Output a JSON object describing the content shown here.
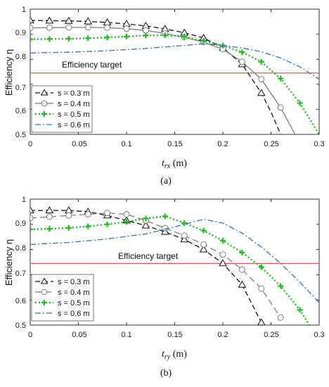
{
  "chart_data": [
    {
      "type": "line",
      "caption": "(a)",
      "xlabel_main": "t",
      "xlabel_sub": "rx",
      "xlabel_unit": " (m)",
      "ylabel": "Efficiency η",
      "xlim": [
        0,
        0.3
      ],
      "ylim": [
        0.5,
        1
      ],
      "xticks": [
        "0",
        "0.05",
        "0.1",
        "0.15",
        "0.2",
        "0.25",
        "0.3"
      ],
      "yticks": [
        "0.5",
        "0.6",
        "0.7",
        "0.8",
        "0.9",
        "1"
      ],
      "grid": false,
      "legend_position": "bottom-left",
      "annotation": {
        "text": "Efficiency target",
        "y": 0.745,
        "color": "#e8413c"
      },
      "series": [
        {
          "name": "s = 0.3 m",
          "color": "#111111",
          "dash": "7,4",
          "marker": "triangle",
          "x": [
            0,
            0.02,
            0.04,
            0.06,
            0.08,
            0.1,
            0.12,
            0.14,
            0.16,
            0.18,
            0.2,
            0.22,
            0.24,
            0.25,
            0.26
          ],
          "y": [
            0.955,
            0.954,
            0.953,
            0.951,
            0.947,
            0.941,
            0.933,
            0.921,
            0.906,
            0.885,
            0.845,
            0.78,
            0.665,
            0.59,
            0.5
          ],
          "markers": [
            0,
            0.02,
            0.04,
            0.06,
            0.08,
            0.1,
            0.12,
            0.14,
            0.16,
            0.18,
            0.2,
            0.22,
            0.24
          ]
        },
        {
          "name": "s = 0.4 m",
          "color": "#7f7f7f",
          "dash": "",
          "marker": "circle",
          "x": [
            0,
            0.02,
            0.04,
            0.06,
            0.08,
            0.1,
            0.12,
            0.14,
            0.16,
            0.18,
            0.2,
            0.22,
            0.24,
            0.26,
            0.275
          ],
          "y": [
            0.925,
            0.926,
            0.927,
            0.927,
            0.926,
            0.922,
            0.915,
            0.903,
            0.888,
            0.868,
            0.84,
            0.79,
            0.72,
            0.607,
            0.5
          ],
          "markers": [
            0,
            0.02,
            0.04,
            0.06,
            0.08,
            0.1,
            0.12,
            0.14,
            0.16,
            0.18,
            0.2,
            0.22,
            0.24,
            0.26
          ]
        },
        {
          "name": "s = 0.5 m",
          "color": "#22bb22",
          "dash": "2,3",
          "marker": "plus",
          "x": [
            0,
            0.02,
            0.04,
            0.06,
            0.08,
            0.1,
            0.12,
            0.14,
            0.16,
            0.18,
            0.2,
            0.22,
            0.24,
            0.26,
            0.28,
            0.3
          ],
          "y": [
            0.88,
            0.881,
            0.882,
            0.884,
            0.887,
            0.891,
            0.895,
            0.896,
            0.89,
            0.873,
            0.855,
            0.828,
            0.79,
            0.723,
            0.625,
            0.5
          ],
          "markers": [
            0,
            0.02,
            0.04,
            0.06,
            0.08,
            0.1,
            0.12,
            0.14,
            0.16,
            0.18,
            0.2,
            0.22,
            0.24,
            0.26,
            0.28
          ]
        },
        {
          "name": "s = 0.6 m",
          "color": "#2f73c9",
          "dash": "8,3,2,3",
          "marker": "none",
          "x": [
            0,
            0.04,
            0.08,
            0.12,
            0.16,
            0.18,
            0.2,
            0.22,
            0.24,
            0.26,
            0.28,
            0.3
          ],
          "y": [
            0.825,
            0.828,
            0.834,
            0.843,
            0.855,
            0.862,
            0.855,
            0.845,
            0.83,
            0.805,
            0.77,
            0.72
          ],
          "markers": []
        }
      ]
    },
    {
      "type": "line",
      "caption": "(b)",
      "xlabel_main": "t",
      "xlabel_sub": "ry",
      "xlabel_unit": " (m)",
      "ylabel": "Efficiency η",
      "xlim": [
        0,
        0.3
      ],
      "ylim": [
        0.5,
        1
      ],
      "xticks": [
        "0",
        "0.05",
        "0.1",
        "0.15",
        "0.2",
        "0.25",
        "0.3"
      ],
      "yticks": [
        "0.5",
        "0.6",
        "0.7",
        "0.8",
        "0.9",
        "1"
      ],
      "grid": false,
      "legend_position": "bottom-left",
      "annotation": {
        "text": "Efficiency target",
        "y": 0.745,
        "color": "#e8413c"
      },
      "series": [
        {
          "name": "s = 0.3 m",
          "color": "#111111",
          "dash": "7,4",
          "marker": "triangle",
          "x": [
            0,
            0.02,
            0.04,
            0.06,
            0.08,
            0.1,
            0.12,
            0.14,
            0.16,
            0.18,
            0.2,
            0.22,
            0.24
          ],
          "y": [
            0.955,
            0.955,
            0.955,
            0.95,
            0.935,
            0.915,
            0.895,
            0.87,
            0.84,
            0.8,
            0.745,
            0.66,
            0.51
          ],
          "markers": [
            0,
            0.02,
            0.04,
            0.06,
            0.08,
            0.1,
            0.12,
            0.14,
            0.16,
            0.18,
            0.2,
            0.22,
            0.24
          ]
        },
        {
          "name": "s = 0.4 m",
          "color": "#7f7f7f",
          "dash": "9,5",
          "marker": "circle",
          "x": [
            0,
            0.02,
            0.04,
            0.06,
            0.08,
            0.1,
            0.12,
            0.14,
            0.16,
            0.18,
            0.2,
            0.22,
            0.24,
            0.26
          ],
          "y": [
            0.925,
            0.93,
            0.935,
            0.94,
            0.945,
            0.94,
            0.915,
            0.885,
            0.855,
            0.82,
            0.78,
            0.72,
            0.645,
            0.53
          ],
          "markers": [
            0,
            0.02,
            0.04,
            0.06,
            0.08,
            0.1,
            0.12,
            0.14,
            0.16,
            0.18,
            0.2,
            0.22,
            0.24,
            0.26
          ]
        },
        {
          "name": "s = 0.5 m",
          "color": "#22bb22",
          "dash": "2,3",
          "marker": "plus",
          "x": [
            0,
            0.02,
            0.04,
            0.06,
            0.08,
            0.1,
            0.12,
            0.14,
            0.16,
            0.18,
            0.2,
            0.22,
            0.24,
            0.26,
            0.28,
            0.29
          ],
          "y": [
            0.88,
            0.882,
            0.886,
            0.892,
            0.9,
            0.91,
            0.923,
            0.932,
            0.905,
            0.875,
            0.835,
            0.788,
            0.73,
            0.655,
            0.56,
            0.5
          ],
          "markers": [
            0,
            0.02,
            0.04,
            0.06,
            0.08,
            0.1,
            0.12,
            0.14,
            0.16,
            0.18,
            0.2,
            0.22,
            0.24,
            0.26,
            0.28
          ]
        },
        {
          "name": "s = 0.6 m",
          "color": "#2f73c9",
          "dash": "8,3,2,3",
          "marker": "none",
          "x": [
            0,
            0.04,
            0.08,
            0.12,
            0.15,
            0.18,
            0.2,
            0.22,
            0.24,
            0.26,
            0.28,
            0.3
          ],
          "y": [
            0.82,
            0.828,
            0.842,
            0.862,
            0.89,
            0.92,
            0.905,
            0.865,
            0.81,
            0.745,
            0.67,
            0.59
          ],
          "markers": []
        }
      ]
    }
  ]
}
